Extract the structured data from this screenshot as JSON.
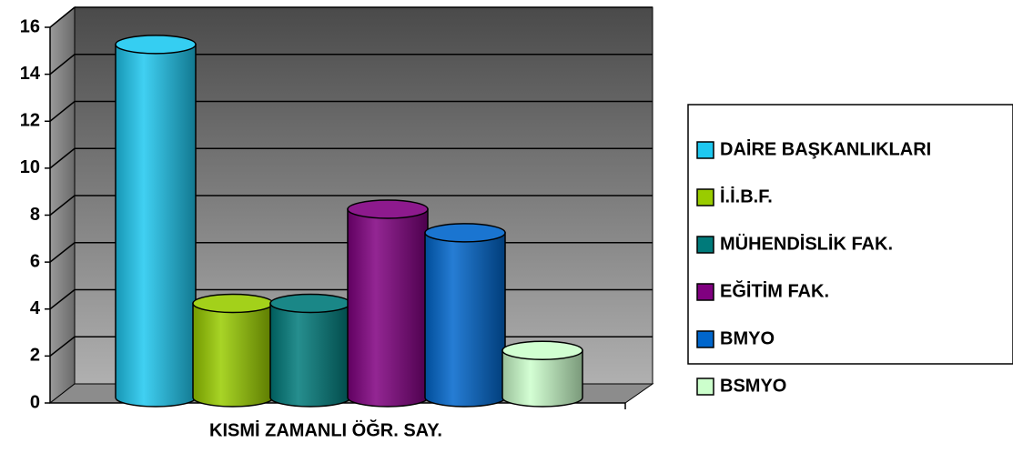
{
  "chart_data": {
    "type": "bar3d-cylinder",
    "categories": [
      "KISMİ ZAMANLI ÖĞR. SAY."
    ],
    "series": [
      {
        "name": "DAİRE BAŞKANLIKLARI",
        "color": "#1ec8f0",
        "values": [
          15
        ]
      },
      {
        "name": "İ.İ.B.F.",
        "color": "#99cc00",
        "values": [
          4
        ]
      },
      {
        "name": "MÜHENDİSLİK FAK.",
        "color": "#007a7a",
        "values": [
          4
        ]
      },
      {
        "name": "EĞİTİM FAK.",
        "color": "#800080",
        "values": [
          8
        ]
      },
      {
        "name": "BMYO",
        "color": "#0066cc",
        "values": [
          7
        ]
      },
      {
        "name": "BSMYO",
        "color": "#ccffcc",
        "values": [
          2
        ]
      }
    ],
    "ylim": [
      0,
      16
    ],
    "yticks": [
      0,
      2,
      4,
      6,
      8,
      10,
      12,
      14,
      16
    ],
    "grid": true,
    "legend": "right"
  }
}
